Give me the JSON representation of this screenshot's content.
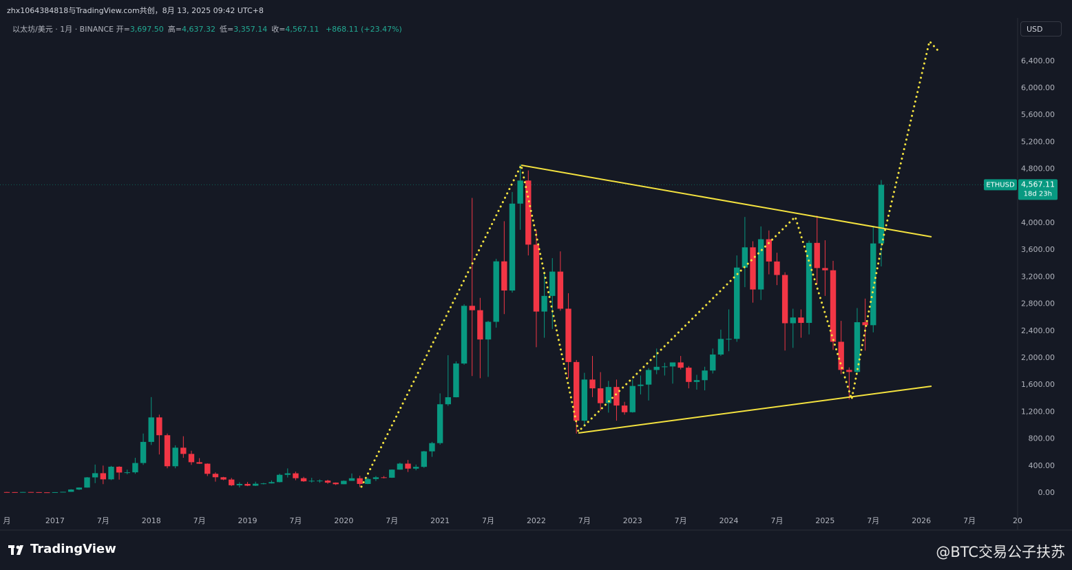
{
  "chart_data": {
    "type": "candlestick",
    "header": "zhx1064384818与TradingView.com共创，8月 13, 2025 09:42 UTC+8",
    "symbol": "以太坊/美元 · 1月 · BINANCE",
    "ohlc_legend": [
      {
        "name": "开=",
        "text": "3,697.50"
      },
      {
        "name": "高=",
        "text": "4,637.32"
      },
      {
        "name": "低=",
        "text": "3,357.14"
      },
      {
        "name": "收=",
        "text": "4,567.11"
      }
    ],
    "change": "+868.11 (+23.47%)",
    "currency": "USD",
    "price_tag": {
      "ticker": "ETHUSD",
      "value_label": "4,567.11",
      "countdown": "18d 23h"
    },
    "brand": "TradingView",
    "watermark": "@BTC交易公子扶苏",
    "up_color": "#089981",
    "down_color": "#f23645",
    "grid": true,
    "xlim": [
      "2016-07",
      "2027-01"
    ],
    "xticks": [
      {
        "value": "2016-07",
        "label": "月"
      },
      {
        "value": "2017-01",
        "label": "2017"
      },
      {
        "value": "2017-07",
        "label": "7月"
      },
      {
        "value": "2018-01",
        "label": "2018"
      },
      {
        "value": "2018-07",
        "label": "7月"
      },
      {
        "value": "2019-01",
        "label": "2019"
      },
      {
        "value": "2019-07",
        "label": "7月"
      },
      {
        "value": "2020-01",
        "label": "2020"
      },
      {
        "value": "2020-07",
        "label": "7月"
      },
      {
        "value": "2021-01",
        "label": "2021"
      },
      {
        "value": "2021-07",
        "label": "7月"
      },
      {
        "value": "2022-01",
        "label": "2022"
      },
      {
        "value": "2022-07",
        "label": "7月"
      },
      {
        "value": "2023-01",
        "label": "2023"
      },
      {
        "value": "2023-07",
        "label": "7月"
      },
      {
        "value": "2024-01",
        "label": "2024"
      },
      {
        "value": "2024-07",
        "label": "7月"
      },
      {
        "value": "2025-01",
        "label": "2025"
      },
      {
        "value": "2025-07",
        "label": "7月"
      },
      {
        "value": "2026-01",
        "label": "2026"
      },
      {
        "value": "2026-07",
        "label": "7月"
      },
      {
        "value": "2027-01",
        "label": "20"
      }
    ],
    "ylim": [
      -551,
      7000
    ],
    "yticks": [
      {
        "value": 0,
        "label": "0.00"
      },
      {
        "value": 400,
        "label": "400.00"
      },
      {
        "value": 800,
        "label": "800.00"
      },
      {
        "value": 1200,
        "label": "1,200.00"
      },
      {
        "value": 1600,
        "label": "1,600.00"
      },
      {
        "value": 2000,
        "label": "2,000.00"
      },
      {
        "value": 2400,
        "label": "2,400.00"
      },
      {
        "value": 2800,
        "label": "2,800.00"
      },
      {
        "value": 3200,
        "label": "3,200.00"
      },
      {
        "value": 3600,
        "label": "3,600.00"
      },
      {
        "value": 4000,
        "label": "4,000.00"
      },
      {
        "value": 4800,
        "label": "4,800.00"
      },
      {
        "value": 5200,
        "label": "5,200.00"
      },
      {
        "value": 5600,
        "label": "5,600.00"
      },
      {
        "value": 6000,
        "label": "6,000.00"
      },
      {
        "value": 6400,
        "label": "6,400.00"
      }
    ],
    "x": [
      "2016-07",
      "2016-08",
      "2016-09",
      "2016-10",
      "2016-11",
      "2016-12",
      "2017-01",
      "2017-02",
      "2017-03",
      "2017-04",
      "2017-05",
      "2017-06",
      "2017-07",
      "2017-08",
      "2017-09",
      "2017-10",
      "2017-11",
      "2017-12",
      "2018-01",
      "2018-02",
      "2018-03",
      "2018-04",
      "2018-05",
      "2018-06",
      "2018-07",
      "2018-08",
      "2018-09",
      "2018-10",
      "2018-11",
      "2018-12",
      "2019-01",
      "2019-02",
      "2019-03",
      "2019-04",
      "2019-05",
      "2019-06",
      "2019-07",
      "2019-08",
      "2019-09",
      "2019-10",
      "2019-11",
      "2019-12",
      "2020-01",
      "2020-02",
      "2020-03",
      "2020-04",
      "2020-05",
      "2020-06",
      "2020-07",
      "2020-08",
      "2020-09",
      "2020-10",
      "2020-11",
      "2020-12",
      "2021-01",
      "2021-02",
      "2021-03",
      "2021-04",
      "2021-05",
      "2021-06",
      "2021-07",
      "2021-08",
      "2021-09",
      "2021-10",
      "2021-11",
      "2021-12",
      "2022-01",
      "2022-02",
      "2022-03",
      "2022-04",
      "2022-05",
      "2022-06",
      "2022-07",
      "2022-08",
      "2022-09",
      "2022-10",
      "2022-11",
      "2022-12",
      "2023-01",
      "2023-02",
      "2023-03",
      "2023-04",
      "2023-05",
      "2023-06",
      "2023-07",
      "2023-08",
      "2023-09",
      "2023-10",
      "2023-11",
      "2023-12",
      "2024-01",
      "2024-02",
      "2024-03",
      "2024-04",
      "2024-05",
      "2024-06",
      "2024-07",
      "2024-08",
      "2024-09",
      "2024-10",
      "2024-11",
      "2024-12",
      "2025-01",
      "2025-02",
      "2025-03",
      "2025-04",
      "2025-05",
      "2025-06",
      "2025-07",
      "2025-08"
    ],
    "open": [
      12.4,
      11.6,
      11.5,
      13.2,
      11.4,
      8.6,
      8.0,
      10.7,
      16.1,
      50,
      79,
      230,
      292,
      201,
      388,
      302,
      305,
      443,
      756,
      1119,
      855,
      395,
      670,
      578,
      455,
      433,
      283,
      232,
      198,
      113,
      133,
      107,
      136,
      141,
      160,
      268,
      290,
      218,
      172,
      180,
      182,
      152,
      129,
      179,
      217,
      133,
      206,
      231,
      225,
      345,
      434,
      360,
      386,
      616,
      738,
      1314,
      1418,
      1918,
      2773,
      2708,
      2274,
      2536,
      3432,
      3000,
      4288,
      4630,
      3680,
      2688,
      2920,
      3280,
      2730,
      1940,
      1070,
      1680,
      1550,
      1330,
      1570,
      1295,
      1196,
      1585,
      1605,
      1822,
      1869,
      1874,
      1934,
      1856,
      1645,
      1671,
      1814,
      2051,
      2282,
      2283,
      3340,
      3640,
      3015,
      3760,
      3430,
      3230,
      2515,
      2600,
      2520,
      3706,
      3333,
      3300,
      2240,
      1823,
      1793,
      2530,
      2486,
      3697.5
    ],
    "high": [
      14.9,
      12.2,
      14.0,
      13.4,
      11.6,
      8.9,
      11.5,
      16.3,
      55,
      81,
      235,
      420,
      405,
      400,
      395,
      345,
      520,
      880,
      1420,
      1160,
      880,
      705,
      840,
      625,
      515,
      438,
      304,
      238,
      222,
      158,
      162,
      166,
      149,
      185,
      285,
      363,
      315,
      238,
      224,
      200,
      195,
      155,
      185,
      288,
      255,
      227,
      250,
      250,
      348,
      448,
      488,
      420,
      623,
      756,
      1475,
      2041,
      1950,
      2797,
      4372,
      2891,
      2550,
      3470,
      4027,
      4460,
      4870,
      4780,
      3900,
      3280,
      3480,
      3580,
      2960,
      1970,
      1780,
      2030,
      1790,
      1660,
      1680,
      1350,
      1680,
      1740,
      1850,
      2140,
      1930,
      1930,
      2030,
      1880,
      1750,
      1870,
      2140,
      2420,
      2720,
      3520,
      4090,
      3730,
      3950,
      3890,
      3560,
      3270,
      2730,
      2720,
      3740,
      4110,
      3745,
      3440,
      2550,
      1860,
      2740,
      2880,
      3940,
      4637.32
    ],
    "low": [
      10.5,
      10.0,
      11.3,
      10.4,
      8.0,
      6.9,
      7.9,
      10.6,
      15.5,
      43,
      78,
      145,
      130,
      190,
      197,
      276,
      283,
      415,
      711,
      570,
      365,
      365,
      520,
      415,
      430,
      250,
      167,
      188,
      101,
      81,
      100,
      102,
      126,
      139,
      155,
      228,
      188,
      164,
      153,
      150,
      135,
      117,
      127,
      178,
      86,
      130,
      176,
      215,
      222,
      344,
      310,
      335,
      371,
      535,
      715,
      1290,
      1416,
      1900,
      1732,
      1700,
      1720,
      2450,
      2650,
      2970,
      3900,
      3520,
      2160,
      2300,
      2430,
      2700,
      1700,
      880,
      1000,
      1420,
      1220,
      1190,
      1070,
      1160,
      1190,
      1460,
      1370,
      1760,
      1740,
      1620,
      1830,
      1550,
      1530,
      1520,
      1770,
      2030,
      2100,
      2240,
      3050,
      2820,
      2860,
      3240,
      3080,
      2110,
      2150,
      2300,
      2350,
      3090,
      2920,
      2120,
      1760,
      1385,
      1750,
      2110,
      2380,
      3357.14
    ],
    "close": [
      11.6,
      11.5,
      13.2,
      11.4,
      8.6,
      8.0,
      10.7,
      16.1,
      50,
      79,
      230,
      292,
      201,
      388,
      302,
      305,
      443,
      756,
      1119,
      855,
      395,
      670,
      578,
      455,
      433,
      283,
      232,
      198,
      113,
      133,
      107,
      136,
      141,
      160,
      268,
      290,
      218,
      172,
      180,
      182,
      152,
      129,
      179,
      217,
      133,
      206,
      231,
      225,
      345,
      434,
      360,
      386,
      616,
      738,
      1314,
      1418,
      1918,
      2773,
      2708,
      2274,
      2536,
      3432,
      3000,
      4288,
      4630,
      3680,
      2688,
      2920,
      3280,
      2730,
      1940,
      1070,
      1680,
      1550,
      1330,
      1570,
      1295,
      1196,
      1585,
      1605,
      1822,
      1869,
      1874,
      1934,
      1856,
      1645,
      1671,
      1814,
      2051,
      2282,
      2283,
      3340,
      3640,
      3015,
      3760,
      3430,
      3230,
      2515,
      2600,
      2520,
      3706,
      3333,
      3300,
      2240,
      1823,
      1793,
      2530,
      2486,
      3697.5,
      4567.11
    ]
  }
}
